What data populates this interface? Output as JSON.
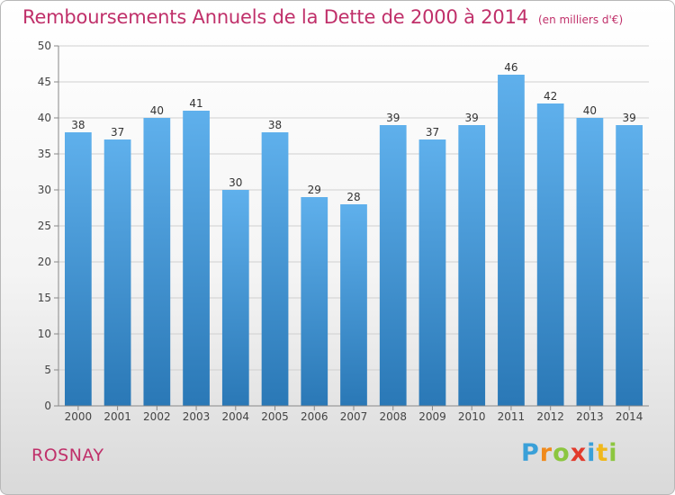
{
  "chart_data": {
    "type": "bar",
    "title": "Remboursements Annuels de la Dette de 2000 à 2014",
    "subtitle": "(en milliers d'€)",
    "categories": [
      "2000",
      "2001",
      "2002",
      "2003",
      "2004",
      "2005",
      "2006",
      "2007",
      "2008",
      "2009",
      "2010",
      "2011",
      "2012",
      "2013",
      "2014"
    ],
    "values": [
      38,
      37,
      40,
      41,
      30,
      38,
      29,
      28,
      39,
      37,
      39,
      46,
      42,
      40,
      39
    ],
    "ylim": [
      0,
      50
    ],
    "yticks": [
      0,
      5,
      10,
      15,
      20,
      25,
      30,
      35,
      40,
      45,
      50
    ],
    "grid": true,
    "bar_color_top": "#5fb0ec",
    "bar_color_bottom": "#2a78b6",
    "data_labels": true
  },
  "location": "ROSNAY",
  "logo": {
    "text": "Proxiti",
    "letters": [
      {
        "ch": "P",
        "color": "#3aa0d8"
      },
      {
        "ch": "r",
        "color": "#f08a1c"
      },
      {
        "ch": "o",
        "color": "#8cc63f"
      },
      {
        "ch": "x",
        "color": "#e23a2c"
      },
      {
        "ch": "i",
        "color": "#3aa0d8"
      },
      {
        "ch": "t",
        "color": "#f0b81c"
      },
      {
        "ch": "i",
        "color": "#8cc63f"
      }
    ]
  },
  "colors": {
    "title": "#c0306a",
    "axis_text": "#444444",
    "grid": "#d0d0d0"
  }
}
